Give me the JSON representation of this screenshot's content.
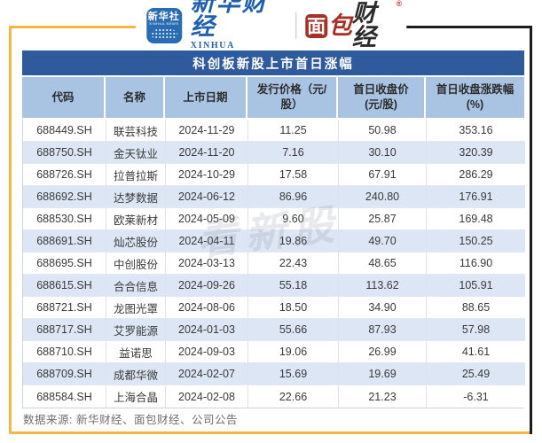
{
  "brand": {
    "xinhua_icon_text": "新华社",
    "xinhua_icon_subtext": "XINHUA NEWS",
    "xinhua_name": "新华财经",
    "xinhua_name_en": "XINHUA FINANCE",
    "bread_first_char": "面",
    "bread_second_char": "包",
    "bread_rest": "财经",
    "bread_reg_mark": "®"
  },
  "table": {
    "title": "科创板新股上市首日涨幅",
    "columns": [
      "代码",
      "名称",
      "上市日期",
      "发行价格（元/股）",
      "首日收盘价\n(元/股)",
      "首日收盘涨跌幅\n(%)"
    ],
    "rows": [
      [
        "688449.SH",
        "联芸科技",
        "2024-11-29",
        "11.25",
        "50.98",
        "353.16"
      ],
      [
        "688750.SH",
        "金天钛业",
        "2024-11-20",
        "7.16",
        "30.10",
        "320.39"
      ],
      [
        "688726.SH",
        "拉普拉斯",
        "2024-10-29",
        "17.58",
        "67.91",
        "286.29"
      ],
      [
        "688692.SH",
        "达梦数据",
        "2024-06-12",
        "86.96",
        "240.80",
        "176.91"
      ],
      [
        "688530.SH",
        "欧莱新材",
        "2024-05-09",
        "9.60",
        "25.87",
        "169.48"
      ],
      [
        "688691.SH",
        "灿芯股份",
        "2024-04-11",
        "19.86",
        "49.70",
        "150.25"
      ],
      [
        "688695.SH",
        "中创股份",
        "2024-03-13",
        "22.43",
        "48.65",
        "116.90"
      ],
      [
        "688615.SH",
        "合合信息",
        "2024-09-26",
        "55.18",
        "113.62",
        "105.91"
      ],
      [
        "688721.SH",
        "龙图光罩",
        "2024-08-06",
        "18.50",
        "34.90",
        "88.65"
      ],
      [
        "688717.SH",
        "艾罗能源",
        "2024-01-03",
        "55.66",
        "87.93",
        "57.98"
      ],
      [
        "688710.SH",
        "益诺思",
        "2024-09-03",
        "19.06",
        "26.99",
        "41.61"
      ],
      [
        "688709.SH",
        "成都华微",
        "2024-02-07",
        "15.69",
        "19.69",
        "25.49"
      ],
      [
        "688584.SH",
        "上海合晶",
        "2024-02-08",
        "22.66",
        "21.23",
        "-6.31"
      ]
    ]
  },
  "chart_data": {
    "type": "table",
    "title": "科创板新股上市首日涨幅",
    "columns": [
      "代码",
      "名称",
      "上市日期",
      "发行价格（元/股）",
      "首日收盘价(元/股)",
      "首日收盘涨跌幅(%)"
    ],
    "rows": [
      [
        "688449.SH",
        "联芸科技",
        "2024-11-29",
        11.25,
        50.98,
        353.16
      ],
      [
        "688750.SH",
        "金天钛业",
        "2024-11-20",
        7.16,
        30.1,
        320.39
      ],
      [
        "688726.SH",
        "拉普拉斯",
        "2024-10-29",
        17.58,
        67.91,
        286.29
      ],
      [
        "688692.SH",
        "达梦数据",
        "2024-06-12",
        86.96,
        240.8,
        176.91
      ],
      [
        "688530.SH",
        "欧莱新材",
        "2024-05-09",
        9.6,
        25.87,
        169.48
      ],
      [
        "688691.SH",
        "灿芯股份",
        "2024-04-11",
        19.86,
        49.7,
        150.25
      ],
      [
        "688695.SH",
        "中创股份",
        "2024-03-13",
        22.43,
        48.65,
        116.9
      ],
      [
        "688615.SH",
        "合合信息",
        "2024-09-26",
        55.18,
        113.62,
        105.91
      ],
      [
        "688721.SH",
        "龙图光罩",
        "2024-08-06",
        18.5,
        34.9,
        88.65
      ],
      [
        "688717.SH",
        "艾罗能源",
        "2024-01-03",
        55.66,
        87.93,
        57.98
      ],
      [
        "688710.SH",
        "益诺思",
        "2024-09-03",
        19.06,
        26.99,
        41.61
      ],
      [
        "688709.SH",
        "成都华微",
        "2024-02-07",
        15.69,
        19.69,
        25.49
      ],
      [
        "688584.SH",
        "上海合晶",
        "2024-02-08",
        22.66,
        21.23,
        -6.31
      ]
    ]
  },
  "watermark": "看新股",
  "footer": {
    "source": "数据来源: 新华财经、面包财经、公司公告"
  },
  "colors": {
    "title_bar_blue": "#2f5a9c",
    "header_blue": "#a9c3e3",
    "row_alt_blue": "#dce6f4",
    "frame_yellow": "#f2b843",
    "frame_dark": "#1c1c1c",
    "xinhua_blue": "#1e5fae",
    "xinhua_icon_blue": "#2a6cb3",
    "bread_red": "#a63026"
  }
}
